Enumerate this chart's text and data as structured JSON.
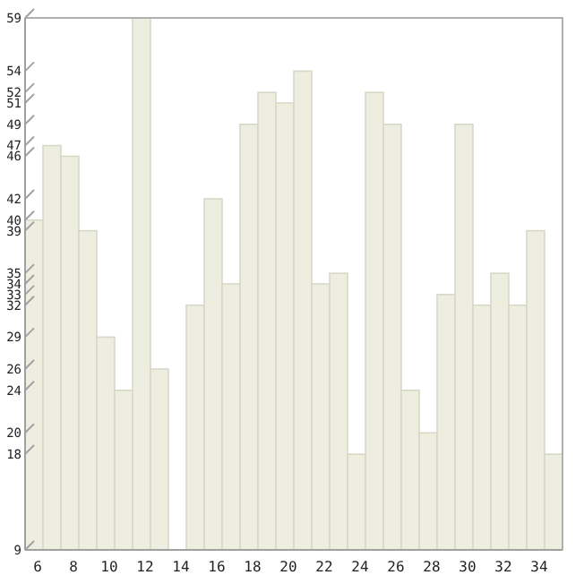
{
  "chart_data": {
    "type": "bar",
    "categories": [
      "6",
      null,
      "8",
      null,
      "10",
      null,
      "12",
      null,
      "14",
      null,
      "16",
      null,
      "18",
      null,
      "20",
      null,
      "22",
      null,
      "24",
      null,
      "26",
      null,
      "28",
      null,
      "30",
      null,
      "32",
      null,
      "34",
      null
    ],
    "values": [
      40,
      47,
      46,
      39,
      29,
      24,
      59,
      26,
      9,
      32,
      42,
      34,
      49,
      52,
      51,
      54,
      34,
      35,
      18,
      52,
      49,
      24,
      20,
      33,
      49,
      32,
      35,
      32,
      39,
      18
    ],
    "color": "#eeeee0",
    "ylim": [
      9,
      59
    ],
    "yticks": [
      9,
      18,
      20,
      24,
      26,
      29,
      32,
      33,
      34,
      35,
      39,
      40,
      42,
      46,
      47,
      49,
      51,
      52,
      54,
      59
    ],
    "grid": false
  }
}
